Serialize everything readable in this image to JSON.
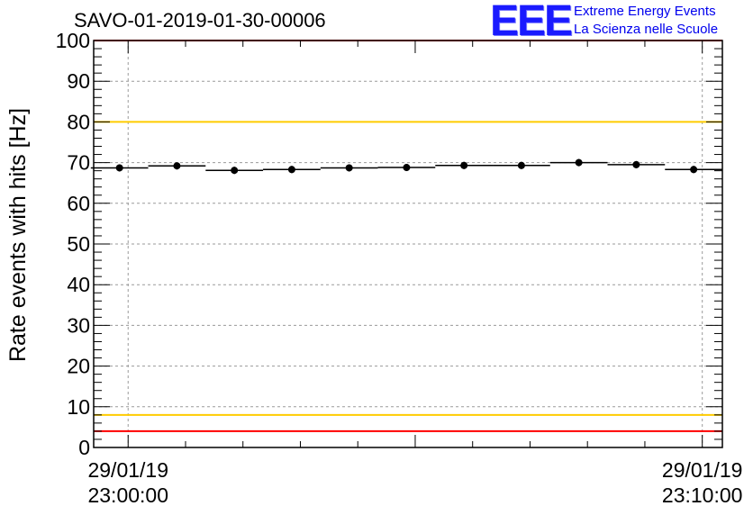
{
  "logo": {
    "mark": "EEE",
    "line1": "Extreme Energy Events",
    "line2": "La Scienza nelle Scuole"
  },
  "chart_data": {
    "type": "scatter",
    "title": "SAVO-01-2019-01-30-00006",
    "xlabel": "",
    "ylabel": "Rate events with hits [Hz]",
    "ylim": [
      0,
      100
    ],
    "yticks": [
      0,
      10,
      20,
      30,
      40,
      50,
      60,
      70,
      80,
      90,
      100
    ],
    "xlim_minutes": [
      -0.6,
      10.35
    ],
    "xtick_labels": [
      {
        "at_minutes": 0,
        "date": "29/01/19",
        "time": "23:00:00"
      },
      {
        "at_minutes": 10,
        "date": "29/01/19",
        "time": "23:10:00"
      }
    ],
    "grid": true,
    "series": [
      {
        "name": "rate",
        "bin_width_minutes": 1.0,
        "x_minutes": [
          -0.15,
          0.85,
          1.85,
          2.85,
          3.85,
          4.85,
          5.85,
          6.85,
          7.85,
          8.85,
          9.85
        ],
        "values": [
          68.7,
          69.2,
          68.1,
          68.3,
          68.7,
          68.8,
          69.3,
          69.3,
          70.0,
          69.5,
          68.3
        ]
      }
    ],
    "reference_lines": [
      {
        "y": 100,
        "color": "#ff0000"
      },
      {
        "y": 80,
        "color": "#ffcc00"
      },
      {
        "y": 8,
        "color": "#ffcc00"
      },
      {
        "y": 4,
        "color": "#ff0000"
      }
    ]
  }
}
